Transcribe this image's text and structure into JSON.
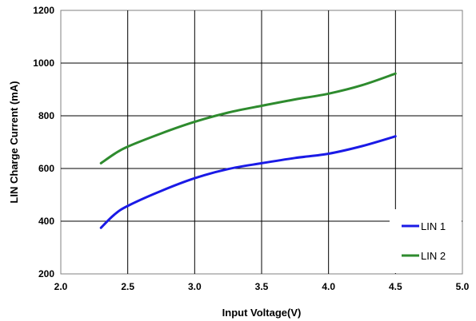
{
  "chart_data": {
    "type": "line",
    "xlabel": "Input Voltage(V)",
    "ylabel": "LIN Charge Current (mA)",
    "xlim": [
      2.0,
      5.0
    ],
    "ylim": [
      200,
      1200
    ],
    "xticks": [
      "2.0",
      "2.5",
      "3.0",
      "3.5",
      "4.0",
      "4.5",
      "5.0"
    ],
    "yticks": [
      "200",
      "400",
      "600",
      "800",
      "1000",
      "1200"
    ],
    "grid": true,
    "legend_position": "bottom-right",
    "series": [
      {
        "name": "LIN 1",
        "color": "#1a1ae6",
        "x": [
          2.3,
          2.4,
          2.5,
          2.75,
          3.0,
          3.25,
          3.5,
          3.75,
          4.0,
          4.25,
          4.5
        ],
        "y": [
          375,
          425,
          458,
          515,
          563,
          598,
          620,
          640,
          656,
          685,
          722
        ]
      },
      {
        "name": "LIN 2",
        "color": "#2e8b2e",
        "x": [
          2.3,
          2.4,
          2.5,
          2.75,
          3.0,
          3.25,
          3.5,
          3.75,
          4.0,
          4.25,
          4.5
        ],
        "y": [
          620,
          655,
          683,
          733,
          777,
          812,
          838,
          862,
          884,
          916,
          960
        ]
      }
    ]
  }
}
